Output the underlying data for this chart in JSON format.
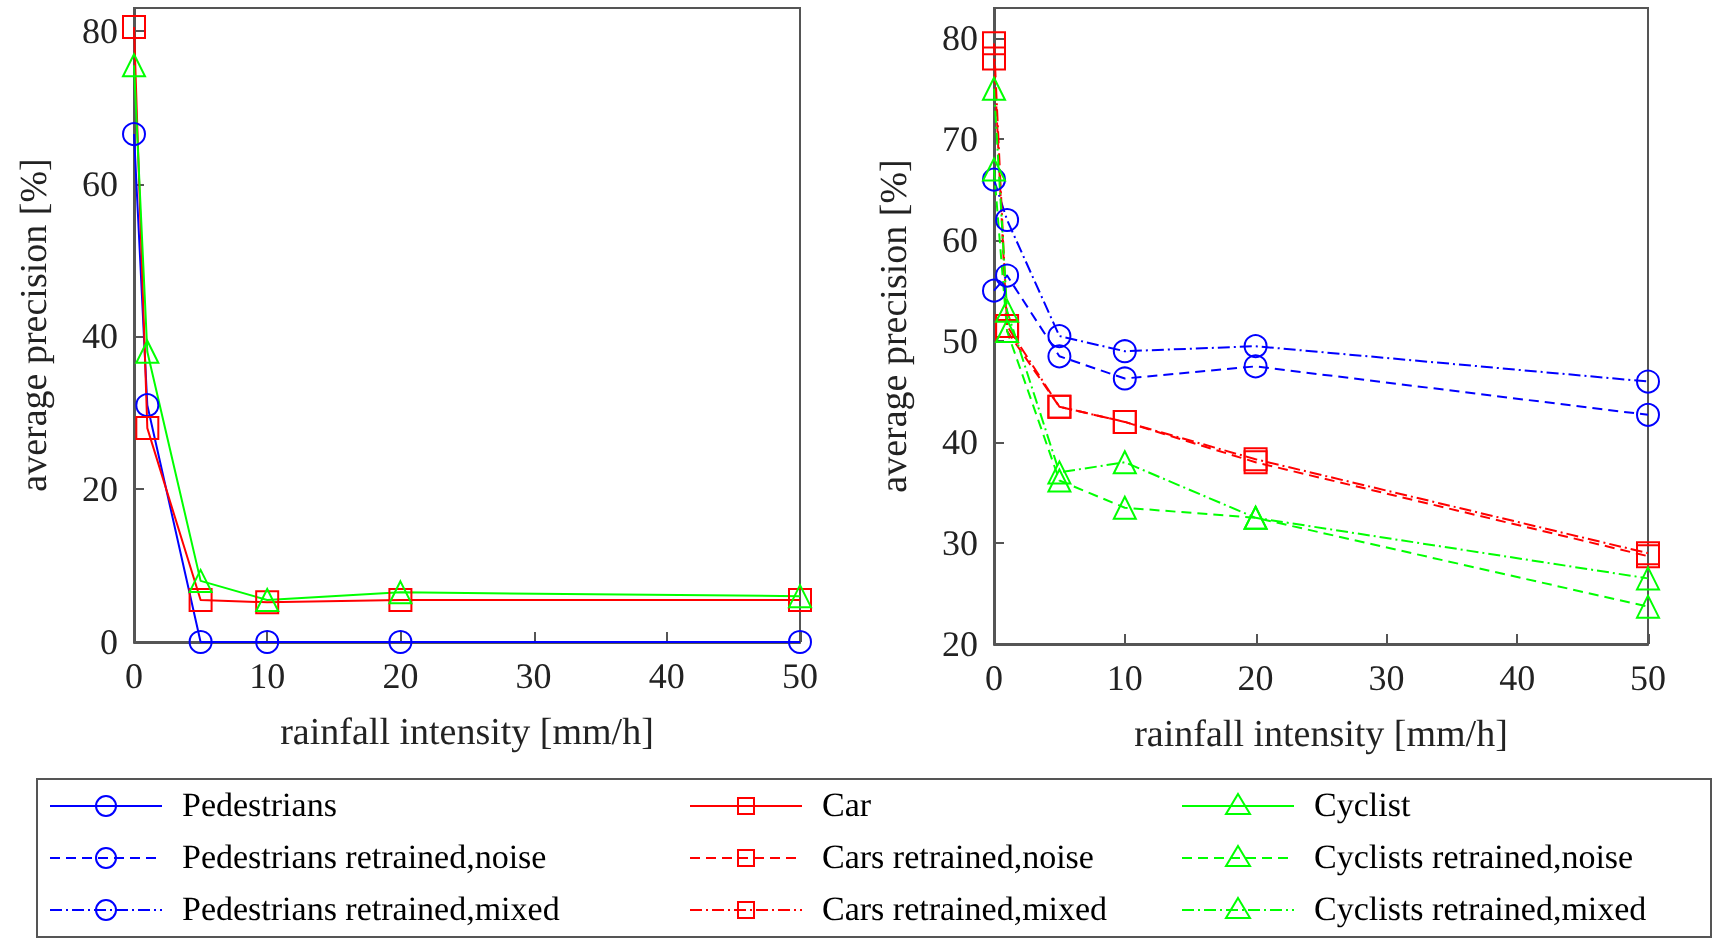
{
  "chart_data": [
    {
      "type": "line",
      "xlabel": "rainfall intensity [mm/h]",
      "ylabel": "average precision [%]",
      "x": [
        0,
        1,
        5,
        10,
        20,
        50
      ],
      "xlim": [
        0,
        50
      ],
      "xticks": [
        0,
        10,
        20,
        30,
        40,
        50
      ],
      "ylim": [
        0,
        83
      ],
      "yticks": [
        0,
        20,
        40,
        60,
        80
      ],
      "grid": false,
      "legend": "bottom",
      "series": [
        {
          "name": "Pedestrians",
          "color": "#0000ff",
          "marker": "circle",
          "line_style": "solid",
          "values": [
            66.5,
            31,
            0,
            0,
            0,
            0
          ]
        },
        {
          "name": "Car",
          "color": "#ff0000",
          "marker": "square",
          "line_style": "solid",
          "values": [
            80.5,
            28,
            5.5,
            5.2,
            5.5,
            5.5
          ]
        },
        {
          "name": "Cyclist",
          "color": "#00ff00",
          "marker": "triangle",
          "line_style": "solid",
          "values": [
            75.5,
            38,
            8,
            5.5,
            6.5,
            6
          ]
        }
      ]
    },
    {
      "type": "line",
      "xlabel": "rainfall intensity [mm/h]",
      "ylabel": "average precision [%]",
      "x": [
        0,
        1,
        5,
        10,
        20,
        50
      ],
      "xlim": [
        0,
        50
      ],
      "xticks": [
        0,
        10,
        20,
        30,
        40,
        50
      ],
      "ylim": [
        20,
        83
      ],
      "yticks": [
        20,
        30,
        40,
        50,
        60,
        70,
        80
      ],
      "grid": false,
      "legend": "bottom",
      "series": [
        {
          "name": "Pedestrians retrained,noise",
          "color": "#0000ff",
          "marker": "circle",
          "line_style": "dashed",
          "values": [
            55,
            56.5,
            48.5,
            46.3,
            47.5,
            42.7
          ]
        },
        {
          "name": "Pedestrians retrained,mixed",
          "color": "#0000ff",
          "marker": "circle",
          "line_style": "dotted",
          "values": [
            66,
            62,
            50.5,
            49,
            49.5,
            46
          ]
        },
        {
          "name": "Cars retrained,noise",
          "color": "#ff0000",
          "marker": "square",
          "line_style": "dashed",
          "values": [
            78,
            51,
            43.5,
            42,
            38,
            28.7
          ]
        },
        {
          "name": "Cars retrained,mixed",
          "color": "#ff0000",
          "marker": "square",
          "line_style": "dotted",
          "values": [
            79.5,
            51.5,
            43.5,
            42,
            38.3,
            29
          ]
        },
        {
          "name": "Cyclists retrained,noise",
          "color": "#00ff00",
          "marker": "triangle",
          "line_style": "dashed",
          "values": [
            67,
            51,
            36.2,
            33.5,
            32.5,
            23.7
          ]
        },
        {
          "name": "Cyclists retrained,mixed",
          "color": "#00ff00",
          "marker": "triangle",
          "line_style": "dotted",
          "values": [
            75,
            53,
            37,
            38,
            32.5,
            26.5
          ]
        }
      ]
    }
  ]
}
